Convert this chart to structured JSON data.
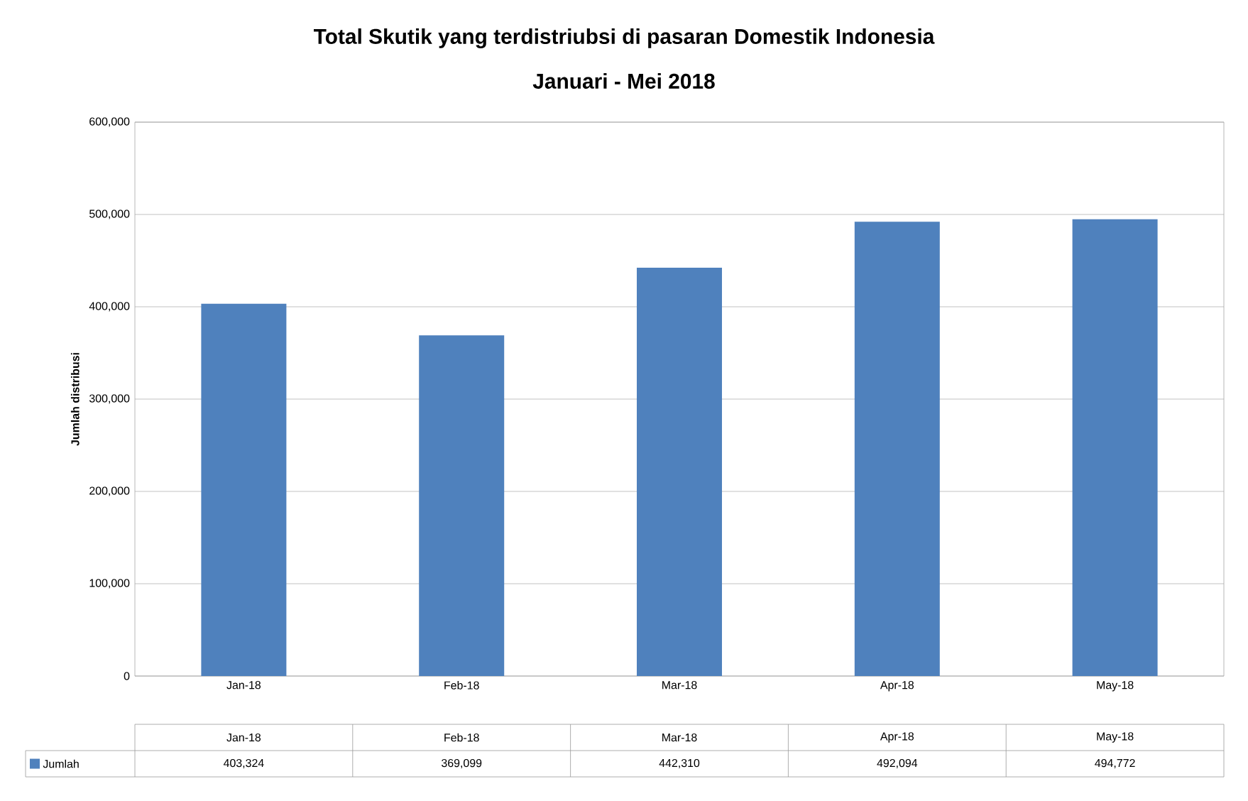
{
  "chart_data": {
    "type": "bar",
    "title": "Total Skutik yang terdistriubsi di pasaran Domestik Indonesia",
    "subtitle": "Januari - Mei 2018",
    "ylabel": "Jumlah distribusi",
    "categories": [
      "Jan-18",
      "Feb-18",
      "Mar-18",
      "Apr-18",
      "May-18"
    ],
    "series": [
      {
        "name": "Jumlah",
        "color": "#4f81bd",
        "values": [
          403324,
          369099,
          442310,
          492094,
          494772
        ],
        "value_labels": [
          "403,324",
          "369,099",
          "442,310",
          "492,094",
          "494,772"
        ]
      }
    ],
    "ylim": [
      0,
      600000
    ],
    "yticks": [
      {
        "value": 0,
        "label": "0"
      },
      {
        "value": 100000,
        "label": "100,000"
      },
      {
        "value": 200000,
        "label": "200,000"
      },
      {
        "value": 300000,
        "label": "300,000"
      },
      {
        "value": 400000,
        "label": "400,000"
      },
      {
        "value": 500000,
        "label": "500,000"
      },
      {
        "value": 600000,
        "label": "600,000"
      }
    ],
    "grid": "y",
    "legend": "bottom"
  }
}
